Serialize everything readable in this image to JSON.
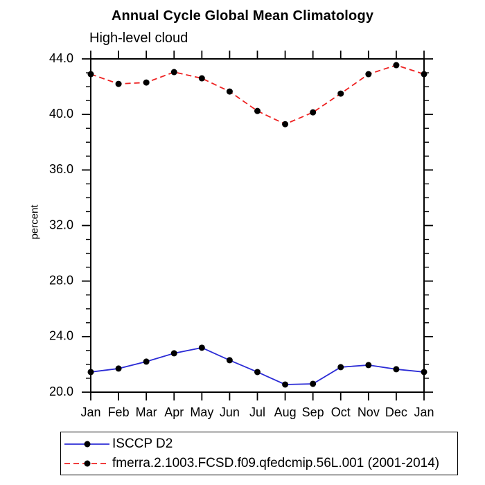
{
  "chart_data": {
    "type": "line",
    "title": "Annual Cycle Global Mean Climatology",
    "subtitle": "High-level cloud",
    "ylabel": "percent",
    "xlabel": "",
    "categories": [
      "Jan",
      "Feb",
      "Mar",
      "Apr",
      "May",
      "Jun",
      "Jul",
      "Aug",
      "Sep",
      "Oct",
      "Nov",
      "Dec",
      "Jan"
    ],
    "ylim": [
      20.0,
      44.0
    ],
    "ytick_values": [
      20,
      24,
      28,
      32,
      36,
      40,
      44
    ],
    "ytick_labels": [
      "20.0",
      "24.0",
      "28.0",
      "32.0",
      "36.0",
      "40.0",
      "44.0"
    ],
    "y_minor_step": 1,
    "grid": false,
    "legend_position": "bottom-left",
    "axis_color": "#000000",
    "marker_color": "#000000",
    "series": [
      {
        "name": "ISCCP D2",
        "color": "#2c2cd6",
        "style": "solid",
        "marker": "black-dot",
        "values": [
          21.45,
          21.7,
          22.2,
          22.8,
          23.2,
          22.3,
          21.45,
          20.55,
          20.6,
          21.8,
          21.95,
          21.65,
          21.45
        ]
      },
      {
        "name": "fmerra.2.1003.FCSD.f09.qfedcmip.56L.001 (2001-2014)",
        "color": "#ee2222",
        "style": "dashed",
        "marker": "black-dot",
        "values": [
          42.9,
          42.2,
          42.3,
          43.05,
          42.6,
          41.65,
          40.25,
          39.3,
          40.15,
          41.5,
          42.9,
          43.55,
          42.9
        ]
      }
    ]
  }
}
